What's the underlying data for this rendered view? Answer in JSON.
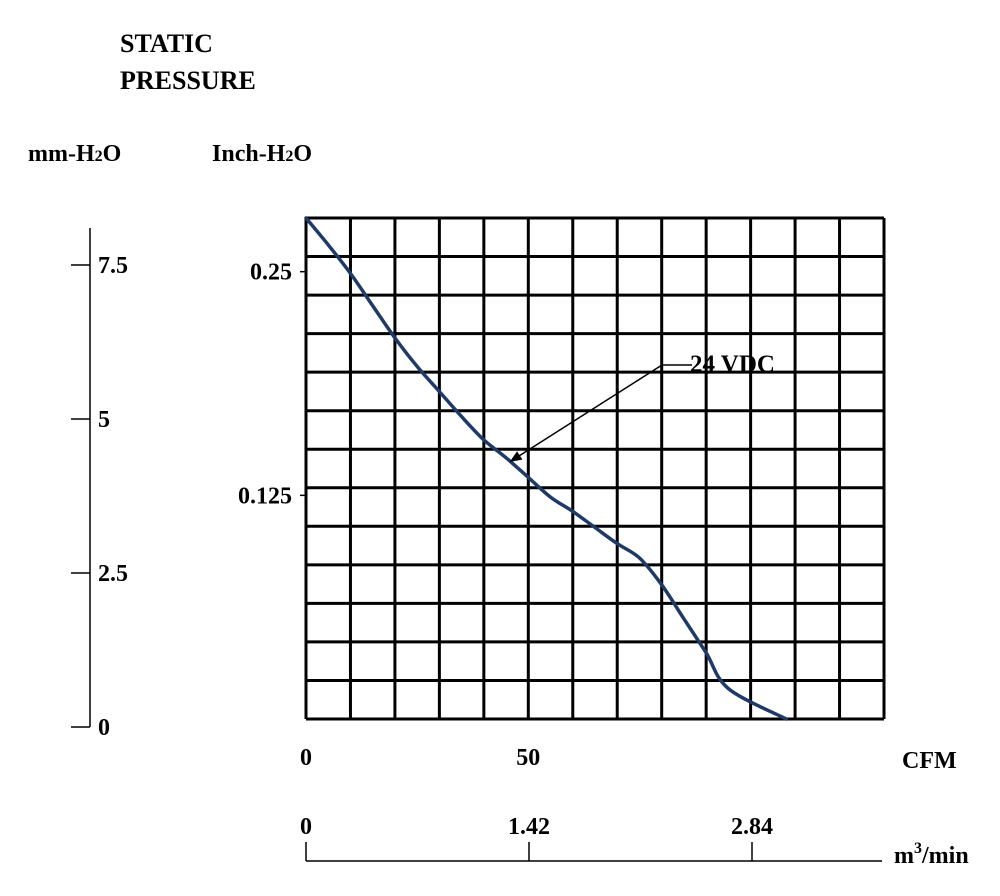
{
  "chart_data": {
    "type": "line",
    "title_line1": "STATIC",
    "title_line2": "PRESSURE",
    "left_unit_label": {
      "base": "mm-H",
      "sub": "2",
      "tail": "O"
    },
    "inner_unit_label": {
      "base": "Inch-H",
      "sub": "2",
      "tail": "O"
    },
    "x_unit_cfm": "CFM",
    "x_unit_m3": {
      "base": "m",
      "sup": "3",
      "tail": "/min"
    },
    "mm_ticks": [
      {
        "value": 7.5,
        "label": "7.5"
      },
      {
        "value": 5,
        "label": "5"
      },
      {
        "value": 2.5,
        "label": "2.5"
      },
      {
        "value": 0,
        "label": "0"
      }
    ],
    "inch_ticks": [
      {
        "value": 0.25,
        "label": "0.25"
      },
      {
        "value": 0.125,
        "label": "0.125"
      }
    ],
    "cfm_ticks": [
      {
        "value": 0,
        "label": "0"
      },
      {
        "value": 50,
        "label": "50"
      }
    ],
    "m3_ticks": [
      {
        "value": 0,
        "label": "0"
      },
      {
        "value": 1.42,
        "label": "1.42"
      },
      {
        "value": 2.84,
        "label": "2.84"
      }
    ],
    "xlim_cfm": [
      0,
      130
    ],
    "ylim_inch": [
      0,
      0.28
    ],
    "grid": true,
    "series": [
      {
        "name": "24 VDC",
        "color": "#1f3a68",
        "points": [
          {
            "cfm": 0,
            "inch": 0.28
          },
          {
            "cfm": 5,
            "inch": 0.265
          },
          {
            "cfm": 10,
            "inch": 0.249
          },
          {
            "cfm": 15,
            "inch": 0.231
          },
          {
            "cfm": 20,
            "inch": 0.213
          },
          {
            "cfm": 25,
            "inch": 0.197
          },
          {
            "cfm": 30,
            "inch": 0.183
          },
          {
            "cfm": 35,
            "inch": 0.169
          },
          {
            "cfm": 40,
            "inch": 0.156
          },
          {
            "cfm": 45,
            "inch": 0.146
          },
          {
            "cfm": 50,
            "inch": 0.135
          },
          {
            "cfm": 55,
            "inch": 0.124
          },
          {
            "cfm": 60,
            "inch": 0.116
          },
          {
            "cfm": 65,
            "inch": 0.107
          },
          {
            "cfm": 70,
            "inch": 0.098
          },
          {
            "cfm": 75,
            "inch": 0.09
          },
          {
            "cfm": 80,
            "inch": 0.075
          },
          {
            "cfm": 85,
            "inch": 0.056
          },
          {
            "cfm": 90,
            "inch": 0.037
          },
          {
            "cfm": 95,
            "inch": 0.017
          },
          {
            "cfm": 108,
            "inch": 0.0
          }
        ]
      }
    ],
    "annotation": {
      "text": "24 VDC",
      "points_to": {
        "cfm": 46,
        "inch": 0.144
      }
    }
  }
}
